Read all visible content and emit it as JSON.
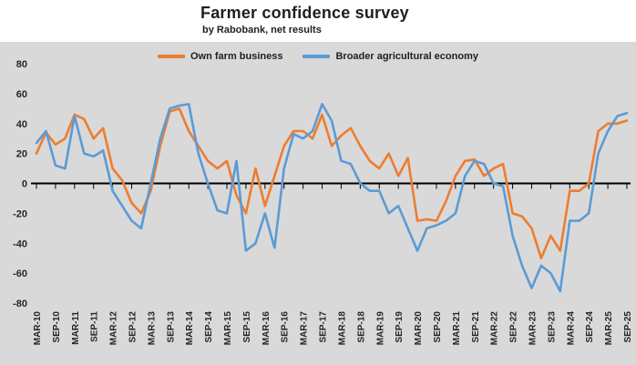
{
  "chart_data": {
    "type": "line",
    "title": "Farmer confidence survey",
    "subtitle": "by Rabobank, net results",
    "ylim": [
      -80,
      80
    ],
    "yticks": [
      80,
      60,
      40,
      20,
      0,
      -20,
      -40,
      -60,
      -80
    ],
    "grid": "none",
    "legend_position": "top",
    "x_tick_labels": [
      "MAR-10",
      "SEP-10",
      "MAR-11",
      "SEP-11",
      "MAR-12",
      "SEP-12",
      "MAR-13",
      "SEP-13",
      "MAR-14",
      "SEP-14",
      "MAR-15",
      "SEP-15",
      "MAR-16",
      "SEP-16",
      "MAR-17",
      "SEP-17",
      "MAR-18",
      "SEP-18",
      "MAR-19",
      "SEP-19",
      "MAR-20",
      "SEP-20",
      "MAR-21",
      "SEP-21",
      "MAR-22",
      "SEP-22",
      "MAR-23",
      "SEP-23",
      "MAR-24",
      "SEP-24",
      "MAR-25",
      "SEP-25"
    ],
    "points_per_tick": 2,
    "colors": {
      "own_farm": "#ED7D31",
      "broader_economy": "#5B9BD5",
      "axis": "#000000",
      "background": "#D9D9D9",
      "text": "#262626"
    },
    "series": [
      {
        "name": "Own farm business",
        "color_key": "own_farm",
        "values": [
          20,
          34,
          26,
          30,
          46,
          43,
          30,
          37,
          10,
          2,
          -13,
          -20,
          -5,
          25,
          48,
          50,
          35,
          25,
          15,
          10,
          15,
          -8,
          -20,
          10,
          -15,
          5,
          25,
          35,
          35,
          30,
          46,
          25,
          32,
          37,
          25,
          15,
          10,
          20,
          5,
          17,
          -25,
          -24,
          -25,
          -12,
          5,
          15,
          16,
          5,
          10,
          13,
          -20,
          -22,
          -30,
          -50,
          -35,
          -45,
          -5,
          -5,
          0,
          35,
          40,
          40,
          42
        ]
      },
      {
        "name": "Broader agricultural economy",
        "color_key": "broader_economy",
        "values": [
          27,
          35,
          12,
          10,
          45,
          20,
          18,
          22,
          -5,
          -15,
          -25,
          -30,
          0,
          30,
          50,
          52,
          53,
          20,
          0,
          -18,
          -20,
          15,
          -45,
          -40,
          -20,
          -43,
          10,
          33,
          30,
          35,
          53,
          42,
          15,
          13,
          0,
          -5,
          -5,
          -20,
          -15,
          -30,
          -45,
          -30,
          -28,
          -25,
          -20,
          5,
          15,
          13,
          0,
          -2,
          -35,
          -55,
          -70,
          -55,
          -60,
          -72,
          -25,
          -25,
          -20,
          20,
          35,
          45,
          47
        ]
      }
    ]
  }
}
